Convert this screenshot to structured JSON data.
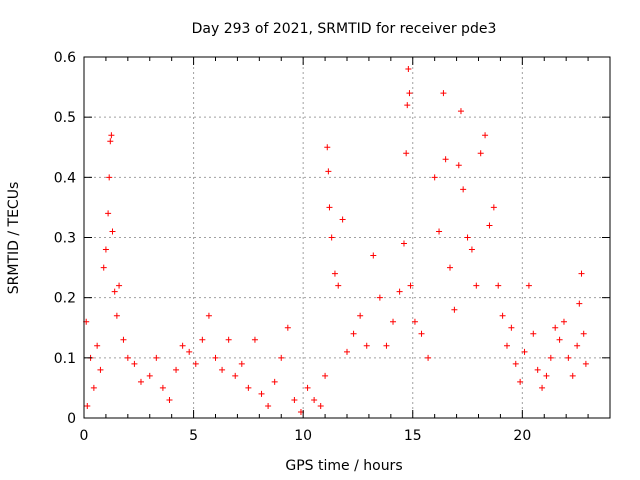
{
  "chart_data": {
    "type": "scatter",
    "title": "Day 293 of 2021, SRMTID for receiver pde3",
    "xlabel": "GPS time / hours",
    "ylabel": "SRMTID / TECUs",
    "xlim": [
      0,
      24
    ],
    "ylim": [
      0,
      0.6
    ],
    "xticks": [
      0,
      5,
      10,
      15,
      20
    ],
    "xtick_labels": [
      "0",
      "5",
      "10",
      "15",
      "20"
    ],
    "yticks": [
      0,
      0.1,
      0.2,
      0.3,
      0.4,
      0.5,
      0.6
    ],
    "ytick_labels": [
      "0",
      "0.1",
      "0.2",
      "0.3",
      "0.4",
      "0.5",
      "0.6"
    ],
    "grid": true,
    "marker": "+",
    "color": "#ff0000",
    "x_range_of_data": [
      0,
      22.9
    ],
    "series": [
      {
        "name": "SRMTID",
        "points": [
          [
            0.1,
            0.16
          ],
          [
            0.15,
            0.02
          ],
          [
            0.3,
            0.1
          ],
          [
            0.45,
            0.05
          ],
          [
            0.6,
            0.12
          ],
          [
            0.75,
            0.08
          ],
          [
            0.9,
            0.25
          ],
          [
            1.0,
            0.28
          ],
          [
            1.1,
            0.34
          ],
          [
            1.15,
            0.4
          ],
          [
            1.2,
            0.46
          ],
          [
            1.25,
            0.47
          ],
          [
            1.3,
            0.31
          ],
          [
            1.4,
            0.21
          ],
          [
            1.5,
            0.17
          ],
          [
            1.6,
            0.22
          ],
          [
            1.8,
            0.13
          ],
          [
            2.0,
            0.1
          ],
          [
            2.3,
            0.09
          ],
          [
            2.6,
            0.06
          ],
          [
            3.0,
            0.07
          ],
          [
            3.3,
            0.1
          ],
          [
            3.6,
            0.05
          ],
          [
            3.9,
            0.03
          ],
          [
            4.2,
            0.08
          ],
          [
            4.5,
            0.12
          ],
          [
            4.8,
            0.11
          ],
          [
            5.1,
            0.09
          ],
          [
            5.4,
            0.13
          ],
          [
            5.7,
            0.17
          ],
          [
            6.0,
            0.1
          ],
          [
            6.3,
            0.08
          ],
          [
            6.6,
            0.13
          ],
          [
            6.9,
            0.07
          ],
          [
            7.2,
            0.09
          ],
          [
            7.5,
            0.05
          ],
          [
            7.8,
            0.13
          ],
          [
            8.1,
            0.04
          ],
          [
            8.4,
            0.02
          ],
          [
            8.7,
            0.06
          ],
          [
            9.0,
            0.1
          ],
          [
            9.3,
            0.15
          ],
          [
            9.6,
            0.03
          ],
          [
            9.9,
            0.01
          ],
          [
            10.2,
            0.05
          ],
          [
            10.5,
            0.03
          ],
          [
            10.8,
            0.02
          ],
          [
            11.0,
            0.07
          ],
          [
            11.1,
            0.45
          ],
          [
            11.15,
            0.41
          ],
          [
            11.2,
            0.35
          ],
          [
            11.3,
            0.3
          ],
          [
            11.45,
            0.24
          ],
          [
            11.6,
            0.22
          ],
          [
            11.8,
            0.33
          ],
          [
            12.0,
            0.11
          ],
          [
            12.3,
            0.14
          ],
          [
            12.6,
            0.17
          ],
          [
            12.9,
            0.12
          ],
          [
            13.2,
            0.27
          ],
          [
            13.5,
            0.2
          ],
          [
            13.8,
            0.12
          ],
          [
            14.1,
            0.16
          ],
          [
            14.4,
            0.21
          ],
          [
            14.6,
            0.29
          ],
          [
            14.7,
            0.44
          ],
          [
            14.75,
            0.52
          ],
          [
            14.8,
            0.58
          ],
          [
            14.85,
            0.54
          ],
          [
            14.9,
            0.22
          ],
          [
            15.1,
            0.16
          ],
          [
            15.4,
            0.14
          ],
          [
            15.7,
            0.1
          ],
          [
            16.0,
            0.4
          ],
          [
            16.2,
            0.31
          ],
          [
            16.4,
            0.54
          ],
          [
            16.5,
            0.43
          ],
          [
            16.7,
            0.25
          ],
          [
            16.9,
            0.18
          ],
          [
            17.1,
            0.42
          ],
          [
            17.2,
            0.51
          ],
          [
            17.3,
            0.38
          ],
          [
            17.5,
            0.3
          ],
          [
            17.7,
            0.28
          ],
          [
            17.9,
            0.22
          ],
          [
            18.1,
            0.44
          ],
          [
            18.3,
            0.47
          ],
          [
            18.5,
            0.32
          ],
          [
            18.7,
            0.35
          ],
          [
            18.9,
            0.22
          ],
          [
            19.1,
            0.17
          ],
          [
            19.3,
            0.12
          ],
          [
            19.5,
            0.15
          ],
          [
            19.7,
            0.09
          ],
          [
            19.9,
            0.06
          ],
          [
            20.1,
            0.11
          ],
          [
            20.3,
            0.22
          ],
          [
            20.5,
            0.14
          ],
          [
            20.7,
            0.08
          ],
          [
            20.9,
            0.05
          ],
          [
            21.1,
            0.07
          ],
          [
            21.3,
            0.1
          ],
          [
            21.5,
            0.15
          ],
          [
            21.7,
            0.13
          ],
          [
            21.9,
            0.16
          ],
          [
            22.1,
            0.1
          ],
          [
            22.3,
            0.07
          ],
          [
            22.5,
            0.12
          ],
          [
            22.6,
            0.19
          ],
          [
            22.7,
            0.24
          ],
          [
            22.8,
            0.14
          ],
          [
            22.9,
            0.09
          ]
        ]
      }
    ]
  }
}
